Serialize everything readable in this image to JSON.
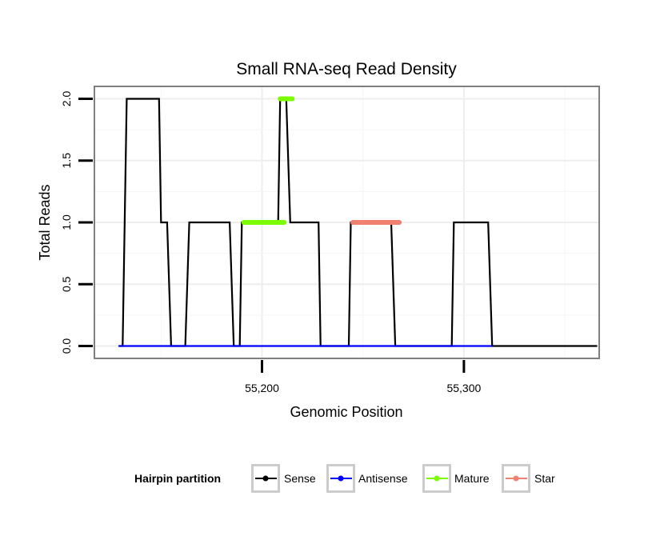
{
  "chart_data": {
    "type": "line",
    "title": "Small RNA-seq Read Density",
    "xlabel": "Genomic Position",
    "ylabel": "Total Reads",
    "xlim": [
      55117,
      55367
    ],
    "ylim": [
      -0.1,
      2.1
    ],
    "x_ticks": [
      55200,
      55300
    ],
    "x_tick_labels": [
      "55,200",
      "55,300"
    ],
    "y_ticks": [
      0,
      0.5,
      1,
      1.5,
      2
    ],
    "y_tick_labels": [
      "0.0",
      "0.5",
      "1.0",
      "1.5",
      "2.0"
    ],
    "grid": true,
    "legend": {
      "position": "bottom",
      "title": "Hairpin partition",
      "entries": [
        "Sense",
        "Antisense",
        "Mature",
        "Star"
      ]
    },
    "colors": {
      "Sense": "#000000",
      "Antisense": "#0000ff",
      "Mature": "#7cfc00",
      "Star": "#f08070"
    },
    "series": [
      {
        "name": "Sense",
        "x": [
          55129,
          55131,
          55133,
          55149,
          55150,
          55152,
          55153,
          55155,
          55162,
          55164,
          55184,
          55186,
          55189,
          55190,
          55208,
          55209,
          55211,
          55212,
          55214,
          55228,
          55229,
          55243,
          55244,
          55264,
          55266,
          55294,
          55295,
          55312,
          55314,
          55366
        ],
        "y": [
          0,
          0,
          2,
          2,
          1,
          1,
          1,
          0,
          0,
          1,
          1,
          0,
          0,
          1,
          1,
          2,
          2,
          2,
          1,
          1,
          0,
          0,
          1,
          1,
          0,
          0,
          1,
          1,
          0,
          0
        ]
      },
      {
        "name": "Antisense",
        "x": [
          55129,
          55314
        ],
        "y": [
          0,
          0
        ]
      },
      {
        "name": "Mature",
        "segments": [
          {
            "x": [
              55191,
              55211
            ],
            "y": [
              1,
              1
            ]
          },
          {
            "x": [
              55209,
              55215
            ],
            "y": [
              2,
              2
            ]
          }
        ]
      },
      {
        "name": "Star",
        "segments": [
          {
            "x": [
              55245,
              55268
            ],
            "y": [
              1,
              1
            ]
          }
        ]
      }
    ]
  }
}
